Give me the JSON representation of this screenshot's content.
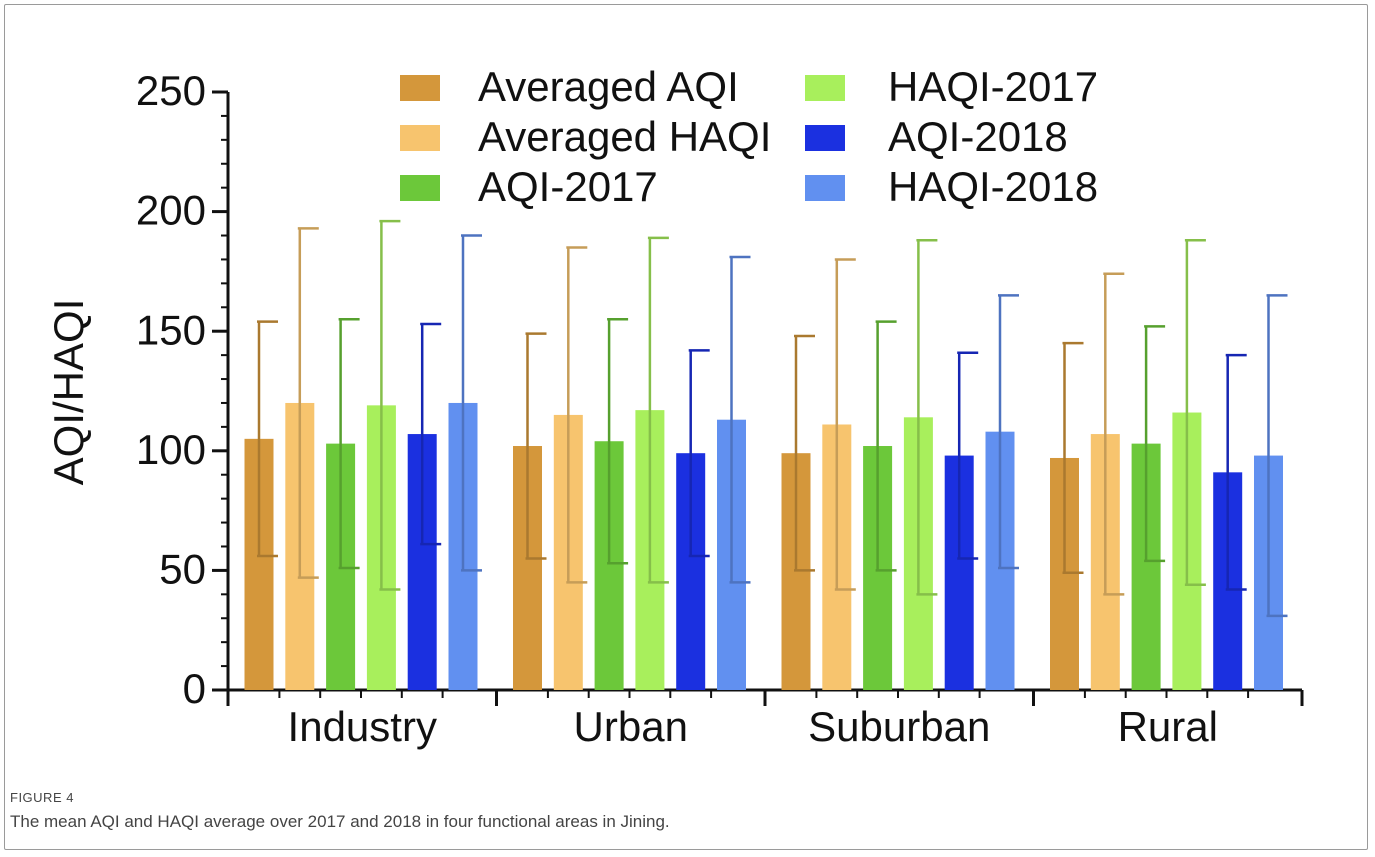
{
  "chart_data": {
    "type": "bar",
    "y_label": "AQI/HAQI",
    "categories": [
      "Industry",
      "Urban",
      "Suburban",
      "Rural"
    ],
    "series": [
      {
        "name": "Averaged AQI",
        "color": "#d4973b",
        "values": [
          105,
          102,
          99,
          97
        ],
        "errors": [
          49,
          47,
          49,
          48
        ]
      },
      {
        "name": "Averaged HAQI",
        "color": "#f7c46e",
        "values": [
          120,
          115,
          111,
          107
        ],
        "errors": [
          73,
          70,
          69,
          67
        ]
      },
      {
        "name": "AQI-2017",
        "color": "#6cc83a",
        "values": [
          103,
          104,
          102,
          103
        ],
        "errors": [
          52,
          51,
          52,
          49
        ]
      },
      {
        "name": "HAQI-2017",
        "color": "#a8ef5c",
        "values": [
          119,
          117,
          114,
          116
        ],
        "errors": [
          77,
          72,
          74,
          72
        ]
      },
      {
        "name": "AQI-2018",
        "color": "#1b30e0",
        "values": [
          107,
          99,
          98,
          91
        ],
        "errors": [
          46,
          43,
          43,
          49
        ]
      },
      {
        "name": "HAQI-2018",
        "color": "#6190f0",
        "values": [
          120,
          113,
          108,
          98
        ],
        "errors": [
          70,
          68,
          57,
          67
        ]
      }
    ],
    "ylim": [
      0,
      250
    ],
    "yticks": [
      0,
      50,
      100,
      150,
      200,
      250
    ],
    "grid": false,
    "legend": "top"
  },
  "figure_label": "FIGURE 4",
  "caption": "The mean AQI and HAQI average over 2017 and 2018 in four functional areas in Jining."
}
